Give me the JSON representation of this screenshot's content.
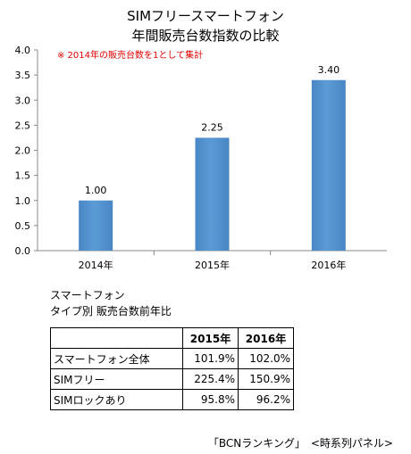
{
  "chart_data": {
    "type": "bar",
    "title": "SIMフリースマートフォン",
    "subtitle": "年間販売台数指数の比較",
    "note": "※ 2014年の販売台数を1として集計",
    "categories": [
      "2014年",
      "2015年",
      "2016年"
    ],
    "values": [
      1.0,
      2.25,
      3.4
    ],
    "data_labels": [
      "1.00",
      "2.25",
      "3.40"
    ],
    "ylim": [
      0,
      4.0
    ],
    "yticks": [
      "0.0",
      "0.5",
      "1.0",
      "1.5",
      "2.0",
      "2.5",
      "3.0",
      "3.5",
      "4.0"
    ],
    "grid": false,
    "bar_color": "#5b9bd5"
  },
  "table": {
    "caption_line1": "スマートフォン",
    "caption_line2": "タイプ別 販売台数前年比",
    "columns": [
      "",
      "2015年",
      "2016年"
    ],
    "rows": [
      {
        "label": "スマートフォン全体",
        "v2015": "101.9%",
        "v2016": "102.0%"
      },
      {
        "label": "SIMフリー",
        "v2015": "225.4%",
        "v2016": "150.9%"
      },
      {
        "label": "SIMロックあり",
        "v2015": "95.8%",
        "v2016": "96.2%"
      }
    ]
  },
  "source": "「BCNランキング」　<時系列パネル>"
}
